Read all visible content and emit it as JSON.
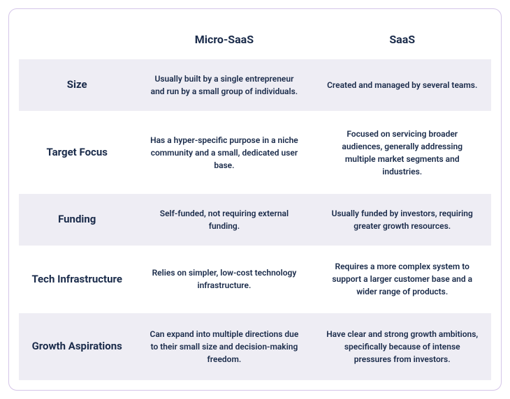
{
  "table": {
    "columns": {
      "micro": "Micro-SaaS",
      "saas": "SaaS"
    },
    "rows": [
      {
        "label": "Size",
        "micro": "Usually built by a single entrepreneur and run by a small group of individuals.",
        "saas": "Created and managed by several teams."
      },
      {
        "label": "Target Focus",
        "micro": "Has a hyper-specific purpose in a niche community and a small, dedicated user base.",
        "saas": "Focused on servicing broader audiences, generally addressing multiple market segments and industries."
      },
      {
        "label": "Funding",
        "micro": "Self-funded, not requiring external funding.",
        "saas": "Usually funded by investors, requiring greater growth resources."
      },
      {
        "label": "Tech Infrastructure",
        "micro": "Relies on simpler, low-cost technology infrastructure.",
        "saas": "Requires a more complex system to support a larger customer base and a wider range of products."
      },
      {
        "label": "Growth Aspirations",
        "micro": "Can expand into multiple directions due to their small size and decision-making freedom.",
        "saas": "Have clear and strong growth ambitions, specifically because of intense pressures from investors."
      }
    ],
    "styling": {
      "gradient_start": "#ff9aa2",
      "gradient_mid": "#ff5fa2",
      "gradient_end": "#ff1493",
      "alt_row_bg": "#eeedf4",
      "plain_row_bg": "#ffffff",
      "border_color": "#d4c5e8",
      "text_color": "#1a2b4a",
      "header_fontsize": 16,
      "label_fontsize": 15,
      "cell_fontsize": 12
    }
  }
}
